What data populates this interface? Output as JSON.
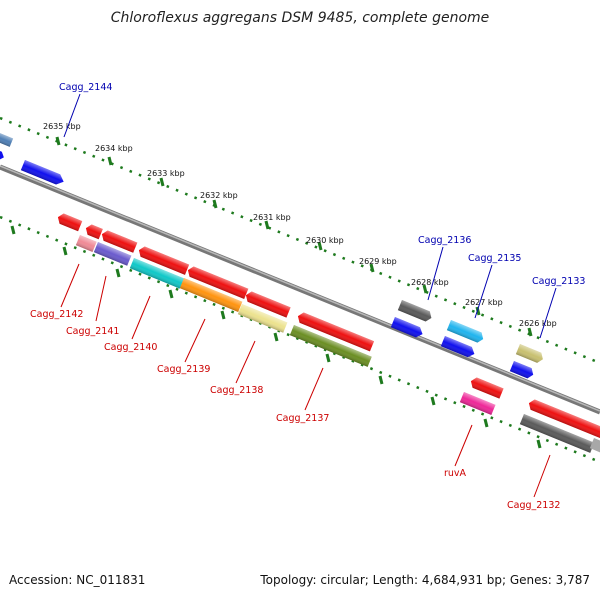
{
  "title": "Chloroflexus aggregans DSM 9485, complete genome",
  "footer": {
    "accession": "Accession: NC_011831",
    "summary": "Topology: circular; Length: 4,684,931 bp; Genes: 3,787"
  },
  "colors": {
    "background": "#ffffff",
    "backbone": "#808080",
    "tick": "#1e7a1e",
    "forward_label": "#0000b0",
    "reverse_label": "#cc0000"
  },
  "axis": {
    "unit": "kbp",
    "ticks": [
      {
        "value": 2635,
        "label": "2635 kbp"
      },
      {
        "value": 2634,
        "label": "2634 kbp"
      },
      {
        "value": 2633,
        "label": "2633 kbp"
      },
      {
        "value": 2632,
        "label": "2632 kbp"
      },
      {
        "value": 2631,
        "label": "2631 kbp"
      },
      {
        "value": 2630,
        "label": "2630 kbp"
      },
      {
        "value": 2629,
        "label": "2629 kbp"
      },
      {
        "value": 2628,
        "label": "2628 kbp"
      },
      {
        "value": 2627,
        "label": "2627 kbp"
      },
      {
        "value": 2626,
        "label": "2626 kbp"
      }
    ]
  },
  "labels": [
    {
      "id": "cagg2144",
      "text": "Cagg_2144",
      "strand": "forward"
    },
    {
      "id": "cagg2136",
      "text": "Cagg_2136",
      "strand": "forward"
    },
    {
      "id": "cagg2135",
      "text": "Cagg_2135",
      "strand": "forward"
    },
    {
      "id": "cagg2133",
      "text": "Cagg_2133",
      "strand": "forward"
    },
    {
      "id": "cagg2142",
      "text": "Cagg_2142",
      "strand": "reverse"
    },
    {
      "id": "cagg2141",
      "text": "Cagg_2141",
      "strand": "reverse"
    },
    {
      "id": "cagg2140",
      "text": "Cagg_2140",
      "strand": "reverse"
    },
    {
      "id": "cagg2139",
      "text": "Cagg_2139",
      "strand": "reverse"
    },
    {
      "id": "cagg2138",
      "text": "Cagg_2138",
      "strand": "reverse"
    },
    {
      "id": "cagg2137",
      "text": "Cagg_2137",
      "strand": "reverse"
    },
    {
      "id": "ruva",
      "text": "ruvA",
      "strand": "reverse"
    },
    {
      "id": "cagg2132",
      "text": "Cagg_2132",
      "strand": "reverse"
    }
  ],
  "feature_colors": {
    "steelblue": "#4f7fb5",
    "blue": "#1010ee",
    "red": "#ee1111",
    "pink": "#f08a96",
    "purple": "#6a5acd",
    "cyan": "#10c8c8",
    "orange": "#ff9410",
    "khaki": "#ece28e",
    "olive": "#6b8e23",
    "darkgray": "#5a5a5a",
    "skyblue": "#20b4ee",
    "darkkhaki": "#c8c070",
    "magenta": "#ee2898",
    "lightgray": "#a8a8a8"
  }
}
